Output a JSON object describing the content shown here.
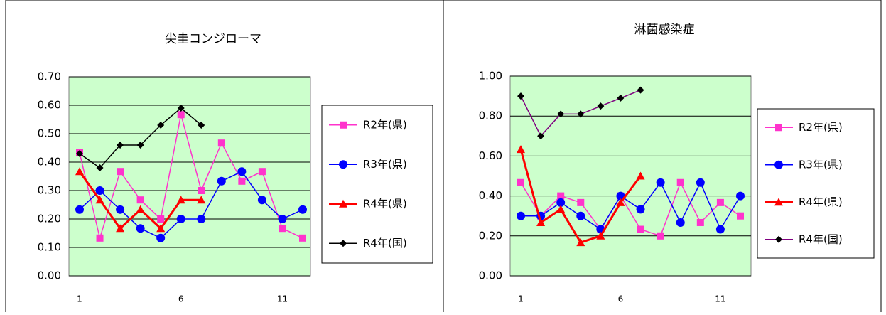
{
  "chart_data": [
    {
      "type": "line",
      "title": "尖圭コンジローマ",
      "categories": [
        "1",
        null,
        null,
        null,
        null,
        "6",
        null,
        null,
        null,
        null,
        "11",
        null
      ],
      "ylim": [
        0,
        0.7
      ],
      "yticks": [
        {
          "value": 0,
          "label": "0.00"
        },
        {
          "value": 0.1,
          "label": "0.10"
        },
        {
          "value": 0.2,
          "label": "0.20"
        },
        {
          "value": 0.3,
          "label": "0.30"
        },
        {
          "value": 0.4,
          "label": "0.40"
        },
        {
          "value": 0.5,
          "label": "0.50"
        },
        {
          "value": 0.6,
          "label": "0.60"
        },
        {
          "value": 0.7,
          "label": "0.70"
        }
      ],
      "grid": true,
      "background": "#ccffcc",
      "legend": "right",
      "series": [
        {
          "name": "R2年(県)",
          "color": "#ff33cc",
          "marker": "square",
          "marker_color": "#ff33cc",
          "width": 1.5,
          "values": [
            0.433,
            0.133,
            0.367,
            0.267,
            0.2,
            0.567,
            0.3,
            0.467,
            0.333,
            0.367,
            0.167,
            0.133
          ]
        },
        {
          "name": "R3年(県)",
          "color": "#0000ff",
          "marker": "circle",
          "marker_color": "#0000ff",
          "width": 1.5,
          "values": [
            0.233,
            0.3,
            0.233,
            0.167,
            0.133,
            0.2,
            0.2,
            0.333,
            0.367,
            0.267,
            0.2,
            0.233
          ]
        },
        {
          "name": "R4年(県)",
          "color": "#ff0000",
          "marker": "triangle",
          "marker_color": "#ff0000",
          "width": 3,
          "values": [
            0.367,
            0.267,
            0.167,
            0.233,
            0.167,
            0.267,
            0.267,
            null,
            null,
            null,
            null,
            null
          ]
        },
        {
          "name": "R4年(国)",
          "color": "#000000",
          "marker": "diamond",
          "marker_color": "#000000",
          "width": 1.5,
          "values": [
            0.43,
            0.38,
            0.46,
            0.46,
            0.53,
            0.59,
            0.53,
            null,
            null,
            null,
            null,
            null
          ]
        }
      ]
    },
    {
      "type": "line",
      "title": "淋菌感染症",
      "categories": [
        "1",
        null,
        null,
        null,
        null,
        "6",
        null,
        null,
        null,
        null,
        "11",
        null
      ],
      "ylim": [
        0,
        1
      ],
      "yticks": [
        {
          "value": 0,
          "label": "0.00"
        },
        {
          "value": 0.2,
          "label": "0.20"
        },
        {
          "value": 0.4,
          "label": "0.40"
        },
        {
          "value": 0.6,
          "label": "0.60"
        },
        {
          "value": 0.8,
          "label": "0.80"
        },
        {
          "value": 1,
          "label": "1.00"
        }
      ],
      "grid": true,
      "background": "#ccffcc",
      "legend": "right",
      "series": [
        {
          "name": "R2年(県)",
          "color": "#ff33cc",
          "marker": "square",
          "marker_color": "#ff33cc",
          "width": 1.5,
          "values": [
            0.467,
            0.3,
            0.4,
            0.367,
            0.233,
            0.4,
            0.233,
            0.2,
            0.467,
            0.267,
            0.367,
            0.3
          ]
        },
        {
          "name": "R3年(県)",
          "color": "#0000ff",
          "marker": "circle",
          "marker_color": "#0000ff",
          "width": 1.5,
          "values": [
            0.3,
            0.3,
            0.367,
            0.3,
            0.233,
            0.4,
            0.333,
            0.467,
            0.267,
            0.467,
            0.233,
            0.4
          ]
        },
        {
          "name": "R4年(県)",
          "color": "#ff0000",
          "marker": "triangle",
          "marker_color": "#ff0000",
          "width": 3,
          "values": [
            0.633,
            0.267,
            0.333,
            0.167,
            0.2,
            0.367,
            0.5,
            null,
            null,
            null,
            null,
            null
          ]
        },
        {
          "name": "R4年(国)",
          "color": "#800080",
          "marker": "diamond",
          "marker_color": "#000000",
          "width": 1.5,
          "values": [
            0.9,
            0.7,
            0.81,
            0.81,
            0.85,
            0.89,
            0.93,
            null,
            null,
            null,
            null,
            null
          ]
        }
      ]
    }
  ]
}
